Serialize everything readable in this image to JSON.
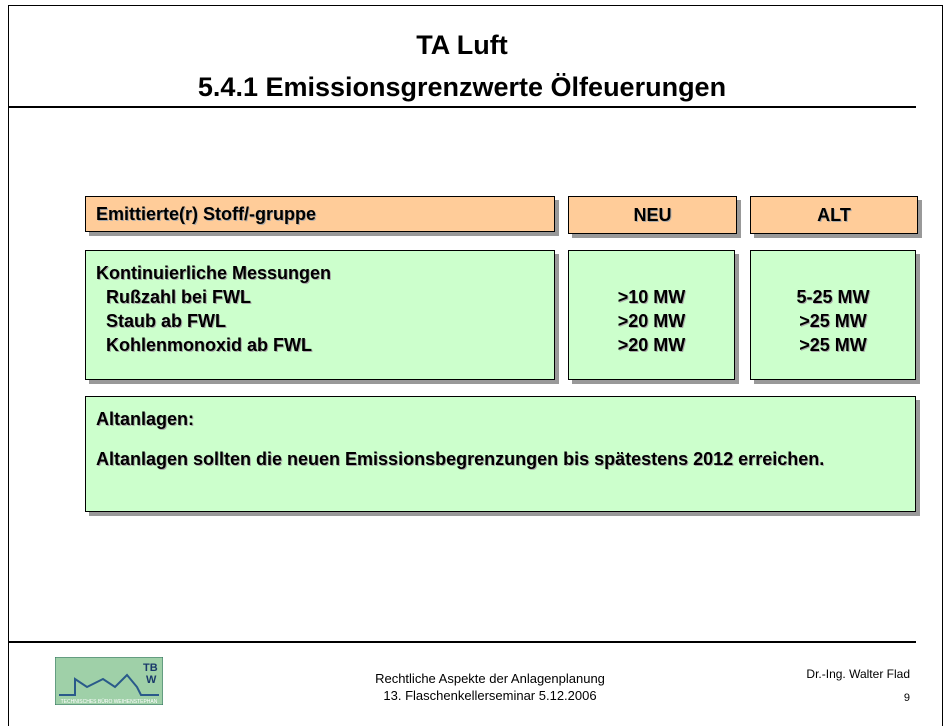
{
  "header": {
    "title": "TA Luft",
    "subtitle": "5.4.1 Emissionsgrenzwerte Ölfeuerungen"
  },
  "table": {
    "columns": [
      "Emittierte(r) Stoff/-gruppe",
      "NEU",
      "ALT"
    ],
    "group": "Kontinuierliche Messungen",
    "rows": [
      [
        "Rußzahl bei FWL",
        ">10 MW",
        "5-25 MW"
      ],
      [
        "Staub ab FWL",
        ">20 MW",
        ">25 MW"
      ],
      [
        "Kohlenmonoxid ab FWL",
        ">20 MW",
        ">25 MW"
      ]
    ]
  },
  "note": {
    "heading": "Altanlagen:",
    "text": "Altanlagen sollten die neuen Emissionsbegrenzungen bis spätestens 2012 erreichen."
  },
  "footer": {
    "lines": [
      "Rechtliche Aspekte der Anlagenplanung",
      "13. Flaschenkellerseminar 5.12.2006"
    ],
    "author": "Dr.-Ing. Walter Flad",
    "page": "9",
    "logo": {
      "mark": [
        "TB",
        "W"
      ],
      "caption": "TECHNISCHES BÜRO WEIHENSTEPHAN"
    }
  }
}
